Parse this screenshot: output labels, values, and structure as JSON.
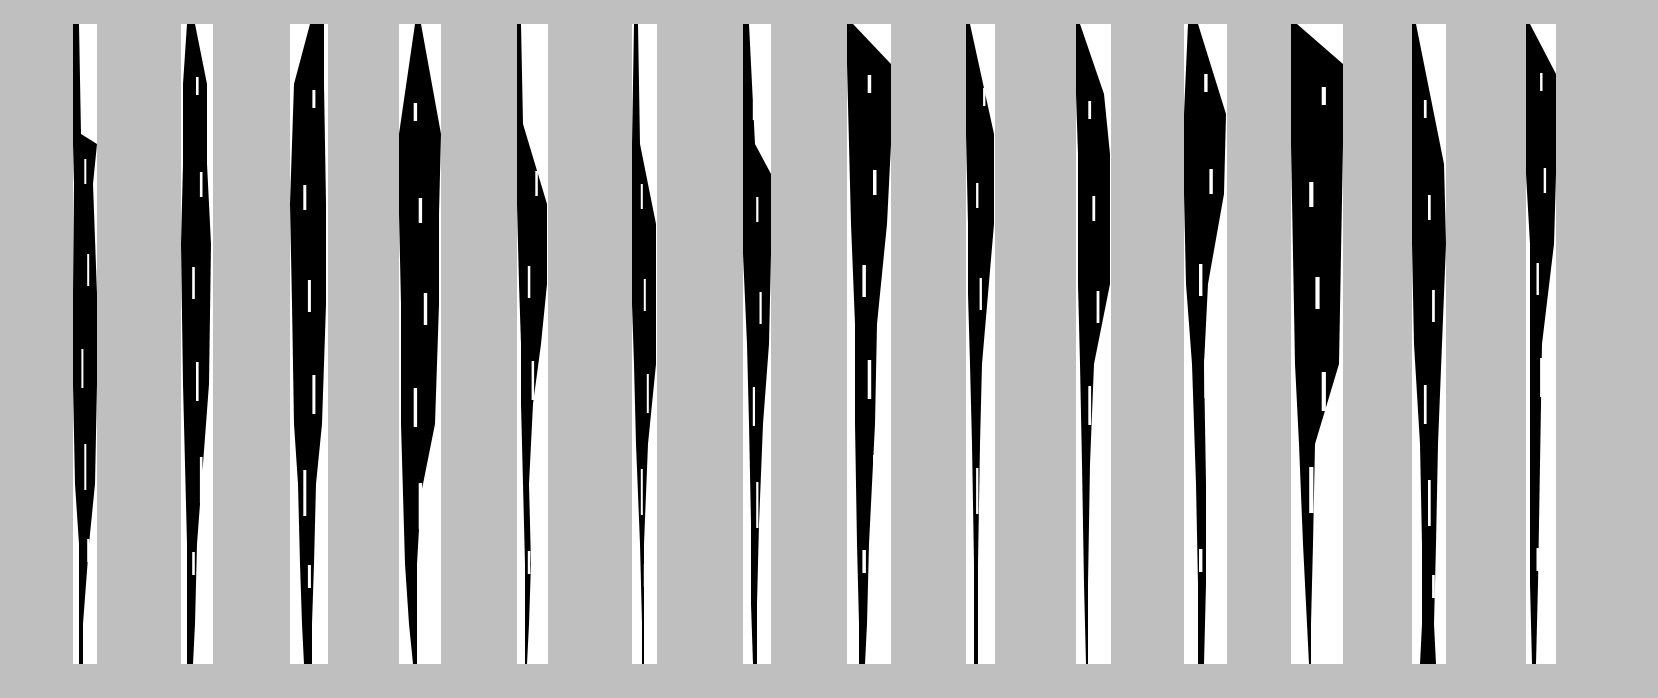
{
  "colors": {
    "background": "#bfbfbf",
    "strip_background": "#ffffff",
    "ink": "#000000"
  },
  "strips": [
    {
      "label": ""
    },
    {
      "label": ""
    },
    {
      "label": ""
    },
    {
      "label": ""
    },
    {
      "label": ""
    },
    {
      "label": ""
    },
    {
      "label": ""
    },
    {
      "label": ""
    },
    {
      "label": ""
    },
    {
      "label": ""
    },
    {
      "label": ""
    },
    {
      "label": ""
    },
    {
      "label": ""
    },
    {
      "label": ""
    }
  ]
}
